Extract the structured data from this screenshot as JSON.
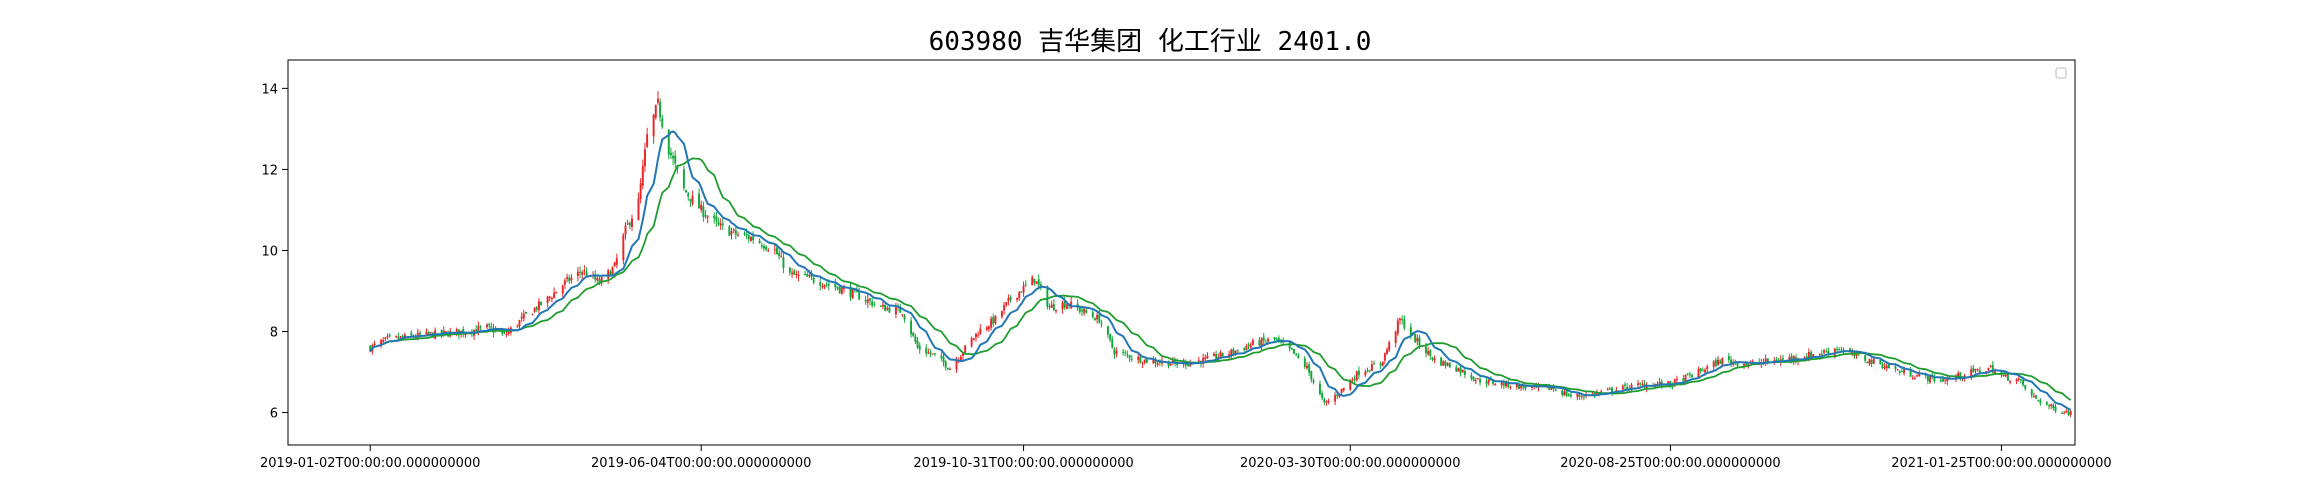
{
  "chart_data": {
    "type": "candlestick",
    "title": "603980 吉华集团 化工行业 2401.0",
    "ylim": [
      5.2,
      14.7
    ],
    "y_ticks": [
      6,
      8,
      10,
      12,
      14
    ],
    "x_tick_labels": [
      "2019-01-02T00:00:00.000000000",
      "2019-06-04T00:00:00.000000000",
      "2019-10-31T00:00:00.000000000",
      "2020-03-30T00:00:00.000000000",
      "2020-08-25T00:00:00.000000000",
      "2021-01-25T00:00:00.000000000"
    ],
    "x_tick_dates": [
      "2019-01-02",
      "2019-06-04",
      "2019-10-31",
      "2020-03-30",
      "2020-08-25",
      "2021-01-25"
    ],
    "x_range": [
      "2018-11-25",
      "2021-02-28"
    ],
    "legend": "top-right",
    "grid": false,
    "colors": {
      "up": "#e8262a",
      "down": "#11a83a",
      "ma_short": "#2277b4",
      "ma_long": "#1f9d2f",
      "axis": "#000000"
    },
    "price_path": [
      [
        "2019-01-02",
        7.6
      ],
      [
        "2019-01-10",
        7.8
      ],
      [
        "2019-01-25",
        7.9
      ],
      [
        "2019-02-15",
        8.0
      ],
      [
        "2019-02-25",
        8.1
      ],
      [
        "2019-03-05",
        7.9
      ],
      [
        "2019-03-15",
        8.4
      ],
      [
        "2019-03-25",
        8.8
      ],
      [
        "2019-04-02",
        9.2
      ],
      [
        "2019-04-10",
        9.5
      ],
      [
        "2019-04-18",
        9.2
      ],
      [
        "2019-04-25",
        9.6
      ],
      [
        "2019-04-30",
        10.5
      ],
      [
        "2019-05-06",
        11.2
      ],
      [
        "2019-05-10",
        12.8
      ],
      [
        "2019-05-15",
        13.6
      ],
      [
        "2019-05-20",
        12.5
      ],
      [
        "2019-05-27",
        11.5
      ],
      [
        "2019-06-04",
        11.0
      ],
      [
        "2019-06-12",
        10.6
      ],
      [
        "2019-06-20",
        10.4
      ],
      [
        "2019-06-28",
        10.3
      ],
      [
        "2019-07-08",
        10.0
      ],
      [
        "2019-07-15",
        9.4
      ],
      [
        "2019-07-25",
        9.3
      ],
      [
        "2019-08-05",
        9.1
      ],
      [
        "2019-08-15",
        8.9
      ],
      [
        "2019-08-26",
        8.6
      ],
      [
        "2019-09-05",
        8.5
      ],
      [
        "2019-09-12",
        7.6
      ],
      [
        "2019-09-20",
        7.4
      ],
      [
        "2019-09-27",
        7.1
      ],
      [
        "2019-10-10",
        8.0
      ],
      [
        "2019-10-18",
        8.3
      ],
      [
        "2019-10-25",
        8.8
      ],
      [
        "2019-11-05",
        9.3
      ],
      [
        "2019-11-12",
        8.6
      ],
      [
        "2019-11-20",
        8.7
      ],
      [
        "2019-12-05",
        8.3
      ],
      [
        "2019-12-12",
        7.5
      ],
      [
        "2019-12-25",
        7.3
      ],
      [
        "2020-01-10",
        7.2
      ],
      [
        "2020-01-23",
        7.3
      ],
      [
        "2020-02-05",
        7.5
      ],
      [
        "2020-02-14",
        7.7
      ],
      [
        "2020-02-24",
        7.8
      ],
      [
        "2020-03-03",
        7.5
      ],
      [
        "2020-03-10",
        7.1
      ],
      [
        "2020-03-18",
        6.2
      ],
      [
        "2020-03-25",
        6.5
      ],
      [
        "2020-04-03",
        7.0
      ],
      [
        "2020-04-13",
        7.2
      ],
      [
        "2020-04-22",
        8.3
      ],
      [
        "2020-04-29",
        7.8
      ],
      [
        "2020-05-08",
        7.3
      ],
      [
        "2020-05-18",
        7.1
      ],
      [
        "2020-05-28",
        6.8
      ],
      [
        "2020-06-10",
        6.7
      ],
      [
        "2020-06-22",
        6.6
      ],
      [
        "2020-07-02",
        6.6
      ],
      [
        "2020-07-10",
        6.4
      ],
      [
        "2020-07-20",
        6.45
      ],
      [
        "2020-08-03",
        6.6
      ],
      [
        "2020-08-14",
        6.7
      ],
      [
        "2020-08-25",
        6.7
      ],
      [
        "2020-09-07",
        7.0
      ],
      [
        "2020-09-18",
        7.3
      ],
      [
        "2020-09-30",
        7.2
      ],
      [
        "2020-10-15",
        7.3
      ],
      [
        "2020-10-26",
        7.4
      ],
      [
        "2020-11-05",
        7.5
      ],
      [
        "2020-11-10",
        7.6
      ],
      [
        "2020-11-18",
        7.4
      ],
      [
        "2020-11-30",
        7.2
      ],
      [
        "2020-12-10",
        7.0
      ],
      [
        "2020-12-18",
        6.9
      ],
      [
        "2020-12-28",
        6.8
      ],
      [
        "2021-01-05",
        6.9
      ],
      [
        "2021-01-12",
        7.0
      ],
      [
        "2021-01-20",
        7.1
      ],
      [
        "2021-01-25",
        6.9
      ],
      [
        "2021-02-02",
        6.8
      ],
      [
        "2021-02-08",
        6.4
      ],
      [
        "2021-02-18",
        6.1
      ],
      [
        "2021-02-26",
        6.0
      ]
    ]
  }
}
